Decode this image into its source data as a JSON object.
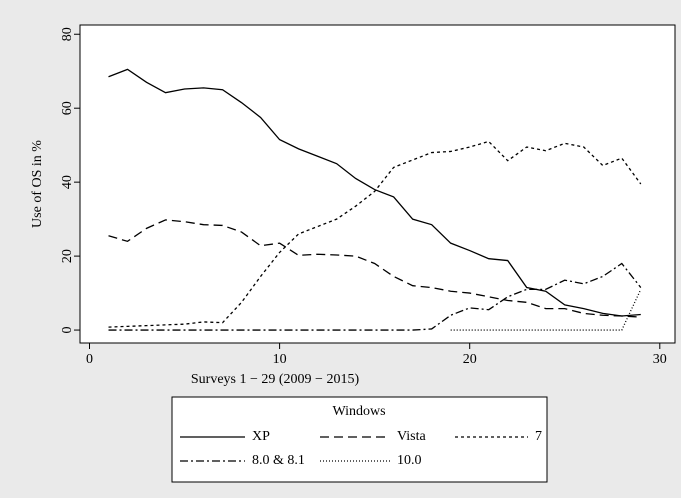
{
  "chart_data": {
    "type": "line",
    "xlabel": "Surveys 1 − 29 (2009 − 2015)",
    "ylabel": "Use of OS in %",
    "x": [
      1,
      2,
      3,
      4,
      5,
      6,
      7,
      8,
      9,
      10,
      11,
      12,
      13,
      14,
      15,
      16,
      17,
      18,
      19,
      20,
      21,
      22,
      23,
      24,
      25,
      26,
      27,
      28,
      29
    ],
    "series": [
      {
        "name": "XP",
        "color": "#000000",
        "style": "solid",
        "values": [
          68.5,
          70.5,
          67,
          64.2,
          65.2,
          65.5,
          65,
          61.5,
          57.5,
          51.5,
          49,
          47,
          45,
          41,
          38,
          36,
          30,
          28.5,
          23.5,
          21.5,
          19.3,
          18.8,
          11.5,
          10.5,
          6.8,
          5.8,
          4.5,
          3.8,
          4.2
        ]
      },
      {
        "name": "Vista",
        "color": "#000000",
        "style": "dash",
        "values": [
          25.5,
          24,
          27.5,
          29.8,
          29.3,
          28.5,
          28.3,
          26.5,
          22.8,
          23.5,
          20.2,
          20.5,
          20.3,
          20,
          18,
          14.5,
          12,
          11.5,
          10.5,
          10,
          9,
          8,
          7.5,
          5.8,
          5.8,
          4.5,
          4,
          3.8,
          3.5
        ]
      },
      {
        "name": "7",
        "color": "#000000",
        "style": "shortdash",
        "values": [
          0.8,
          1,
          1.2,
          1.4,
          1.6,
          2.2,
          2,
          7.5,
          14.5,
          21,
          26,
          28,
          30,
          33.5,
          37.5,
          44,
          46,
          48,
          48.3,
          49.5,
          51,
          45.8,
          49.5,
          48.5,
          50.5,
          49.5,
          44.5,
          46.5,
          39.5
        ]
      },
      {
        "name": "8.0 & 8.1",
        "color": "#000000",
        "style": "dashdot",
        "values": [
          0,
          0,
          0,
          0,
          0,
          0,
          0,
          0,
          0,
          0,
          0,
          0,
          0,
          0,
          0,
          0,
          0,
          0.3,
          4,
          6,
          5.5,
          9,
          11,
          11,
          13.5,
          12.5,
          14.5,
          18,
          11.5
        ]
      },
      {
        "name": "10.0",
        "color": "#000000",
        "style": "dot",
        "values": [
          null,
          null,
          null,
          null,
          null,
          null,
          null,
          null,
          null,
          null,
          null,
          null,
          null,
          null,
          null,
          null,
          null,
          null,
          0,
          0,
          0,
          0,
          0,
          0,
          0,
          0,
          0,
          0,
          11
        ]
      }
    ],
    "legend_title": "Windows",
    "xlim": [
      -0.5,
      30.8
    ],
    "xticks": [
      0,
      10,
      20,
      30
    ],
    "ylim": [
      -3.5,
      82.5
    ],
    "yticks": [
      0,
      20,
      40,
      60,
      80
    ]
  }
}
